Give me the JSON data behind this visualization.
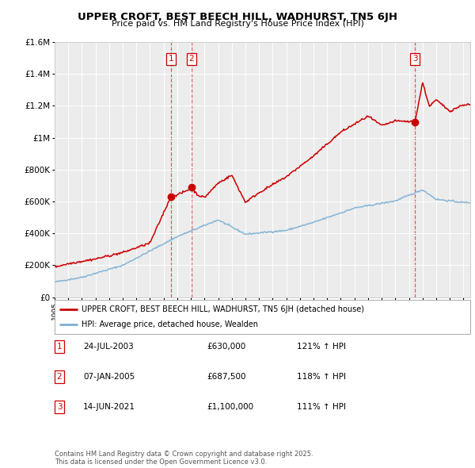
{
  "title": "UPPER CROFT, BEST BEECH HILL, WADHURST, TN5 6JH",
  "subtitle": "Price paid vs. HM Land Registry's House Price Index (HPI)",
  "legend_line1": "UPPER CROFT, BEST BEECH HILL, WADHURST, TN5 6JH (detached house)",
  "legend_line2": "HPI: Average price, detached house, Wealden",
  "footer": "Contains HM Land Registry data © Crown copyright and database right 2025.\nThis data is licensed under the Open Government Licence v3.0.",
  "transactions": [
    {
      "num": "1",
      "date": "24-JUL-2003",
      "price": "£630,000",
      "hpi": "121% ↑ HPI"
    },
    {
      "num": "2",
      "date": "07-JAN-2005",
      "price": "£687,500",
      "hpi": "118% ↑ HPI"
    },
    {
      "num": "3",
      "date": "14-JUN-2021",
      "price": "£1,100,000",
      "hpi": "111% ↑ HPI"
    }
  ],
  "vline_x": [
    2003.56,
    2005.03,
    2021.45
  ],
  "sale_points": [
    [
      2003.56,
      630000
    ],
    [
      2005.03,
      687500
    ],
    [
      2021.45,
      1100000
    ]
  ],
  "ylim": [
    0,
    1600000
  ],
  "xlim_start": 1995,
  "xlim_end": 2025.5,
  "yticks": [
    0,
    200000,
    400000,
    600000,
    800000,
    1000000,
    1200000,
    1400000,
    1600000
  ],
  "ylabels": [
    "£0",
    "£200K",
    "£400K",
    "£600K",
    "£800K",
    "£1M",
    "£1.2M",
    "£1.4M",
    "£1.6M"
  ],
  "red_color": "#cc0000",
  "blue_color": "#7ab0d4",
  "background_color": "#ececec",
  "grid_color": "#ffffff"
}
